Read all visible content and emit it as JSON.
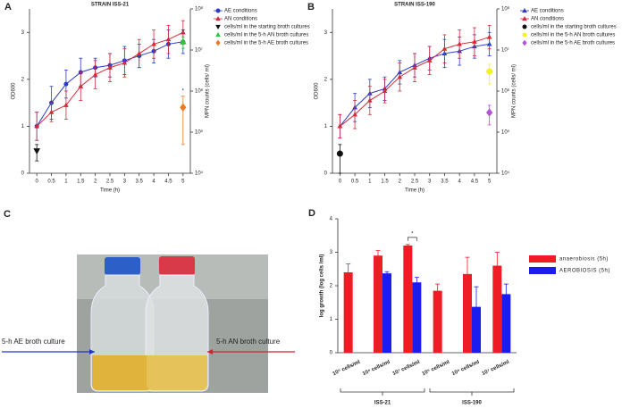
{
  "chart_data": [
    {
      "type": "line",
      "panel": "A",
      "title": "STRAIN ISS-21",
      "xlabel": "Time (h)",
      "ylabel": "OD600",
      "y2label": "MPN counts (cells/ ml)",
      "x": [
        0,
        0.5,
        1,
        1.5,
        2,
        2.5,
        3,
        3.5,
        4,
        4.5,
        5
      ],
      "xlim": [
        -0.25,
        5.25
      ],
      "xticks": [
        0,
        0.5,
        1,
        1.5,
        2,
        2.5,
        3,
        3.5,
        4,
        4.5,
        5
      ],
      "ylim": [
        0,
        3.5
      ],
      "yticks": [
        0,
        1,
        2,
        3
      ],
      "y2log": true,
      "y2lim": [
        10000,
        100000000
      ],
      "y2ticks": [
        {
          "value": 10000,
          "label": "10⁴"
        },
        {
          "value": 100000,
          "label": "10⁵"
        },
        {
          "value": 1000000,
          "label": "10⁶"
        },
        {
          "value": 10000000,
          "label": "10⁷"
        },
        {
          "value": 100000000,
          "label": "10⁸"
        }
      ],
      "series": [
        {
          "name": "AE conditions",
          "color": "#2b3bc4",
          "marker": "circle",
          "line": true,
          "values": [
            1.0,
            1.5,
            1.9,
            2.15,
            2.25,
            2.3,
            2.4,
            2.5,
            2.6,
            2.75,
            2.8
          ],
          "errors": [
            0.3,
            0.35,
            0.3,
            0.3,
            0.2,
            0.25,
            0.3,
            0.25,
            0.25,
            0.3,
            0.25
          ]
        },
        {
          "name": "AN conditions",
          "color": "#d42a3a",
          "marker": "triangle",
          "line": true,
          "values": [
            1.0,
            1.3,
            1.45,
            1.85,
            2.1,
            2.25,
            2.35,
            2.55,
            2.75,
            2.85,
            3.0
          ],
          "errors": [
            0.3,
            0.2,
            0.3,
            0.3,
            0.3,
            0.3,
            0.3,
            0.3,
            0.3,
            0.3,
            0.25
          ]
        },
        {
          "name": "cells/ml in the starting broth cultures",
          "color": "#111111",
          "marker": "triangle-down",
          "axis": "y2",
          "x": [
            0
          ],
          "values": [
            35000
          ],
          "errors": [
            15000
          ]
        },
        {
          "name": "cells/ml in the 5-h AN broth cultures",
          "color": "#2fc43a",
          "marker": "triangle",
          "axis": "y2",
          "x": [
            5
          ],
          "values": [
            16000000
          ],
          "errors": [
            5000000
          ],
          "marks": [
            "*"
          ]
        },
        {
          "name": "cells/ml in the 5-h AE broth cultures",
          "color": "#ee7a22",
          "marker": "diamond",
          "axis": "y2",
          "x": [
            5
          ],
          "values": [
            400000
          ],
          "errors": [
            350000
          ],
          "marks": [
            "*"
          ]
        }
      ]
    },
    {
      "type": "line",
      "panel": "B",
      "title": "STRAIN ISS-190",
      "xlabel": "Time (h)",
      "ylabel": "OD600",
      "y2label": "MPN counts (cells/ ml)",
      "x": [
        0,
        0.5,
        1,
        1.5,
        2,
        2.5,
        3,
        3.5,
        4,
        4.5,
        5
      ],
      "xlim": [
        -0.25,
        5.25
      ],
      "xticks": [
        0,
        0.5,
        1,
        1.5,
        2,
        2.5,
        3,
        3.5,
        4,
        4.5,
        5
      ],
      "ylim": [
        0,
        3.5
      ],
      "yticks": [
        0,
        1,
        2,
        3
      ],
      "y2log": true,
      "y2lim": [
        10000,
        100000000
      ],
      "y2ticks": [
        {
          "value": 10000,
          "label": "10⁴"
        },
        {
          "value": 100000,
          "label": "10⁵"
        },
        {
          "value": 1000000,
          "label": "10⁶"
        },
        {
          "value": 10000000,
          "label": "10⁷"
        },
        {
          "value": 100000000,
          "label": "10⁸"
        }
      ],
      "series": [
        {
          "name": "AE conditions",
          "color": "#2b3bc4",
          "marker": "triangle",
          "line": true,
          "values": [
            1.0,
            1.4,
            1.7,
            1.8,
            2.15,
            2.3,
            2.45,
            2.55,
            2.6,
            2.7,
            2.75
          ],
          "errors": [
            0.25,
            0.3,
            0.3,
            0.25,
            0.25,
            0.25,
            0.25,
            0.3,
            0.3,
            0.25,
            0.25
          ]
        },
        {
          "name": "AN conditions",
          "color": "#d42a3a",
          "marker": "triangle",
          "line": true,
          "values": [
            1.0,
            1.25,
            1.55,
            1.75,
            2.05,
            2.25,
            2.4,
            2.65,
            2.75,
            2.8,
            2.9
          ],
          "errors": [
            0.25,
            0.3,
            0.3,
            0.25,
            0.3,
            0.3,
            0.3,
            0.3,
            0.3,
            0.3,
            0.25
          ]
        },
        {
          "name": "cells/ml in the starting broth cultures",
          "color": "#111111",
          "marker": "circle",
          "axis": "y2",
          "x": [
            0
          ],
          "values": [
            30000
          ],
          "errors": [
            20000
          ]
        },
        {
          "name": "cells/ml in the 5-h AN broth cultures",
          "color": "#f2f224",
          "marker": "circle",
          "axis": "y2",
          "x": [
            5
          ],
          "values": [
            3000000
          ],
          "errors": [
            1500000
          ]
        },
        {
          "name": "cells/ml in the 5-h AE broth cultures",
          "color": "#b455d6",
          "marker": "diamond",
          "axis": "y2",
          "x": [
            5
          ],
          "values": [
            300000
          ],
          "errors": [
            150000
          ]
        }
      ]
    },
    {
      "type": "bar",
      "panel": "D",
      "ylabel": "log growth (log cells /ml)",
      "categories": [
        "10⁵ cells/ml",
        "10⁶ cells/ml",
        "10⁷ cells/ml",
        "10⁵ cells/ml",
        "10⁶ cells/ml",
        "10⁷ cells/ml"
      ],
      "groups": [
        {
          "name": "ISS-21",
          "size": 3
        },
        {
          "name": "ISS-190",
          "size": 3
        }
      ],
      "ylim": [
        0,
        4
      ],
      "yticks": [
        0,
        1,
        2,
        3,
        4
      ],
      "significance_marks": [
        null,
        null,
        "*",
        null,
        null,
        null
      ],
      "series": [
        {
          "name": "anaerobiosis (5h)",
          "color": "#ee1c24",
          "values": [
            2.4,
            2.9,
            3.2,
            1.85,
            2.35,
            2.6
          ],
          "errors": [
            0.25,
            0.15,
            0.03,
            0.2,
            0.5,
            0.4
          ]
        },
        {
          "name": "AEROBIOSIS (5h)",
          "color": "#1c1cee",
          "values": [
            null,
            2.37,
            2.1,
            null,
            1.37,
            1.75
          ],
          "errors": [
            null,
            0.05,
            0.15,
            null,
            0.6,
            0.3
          ]
        }
      ]
    }
  ],
  "photo_panel": {
    "panel": "C",
    "left_label": "5-h AE broth culture",
    "right_label": "5-h AN broth culture"
  }
}
